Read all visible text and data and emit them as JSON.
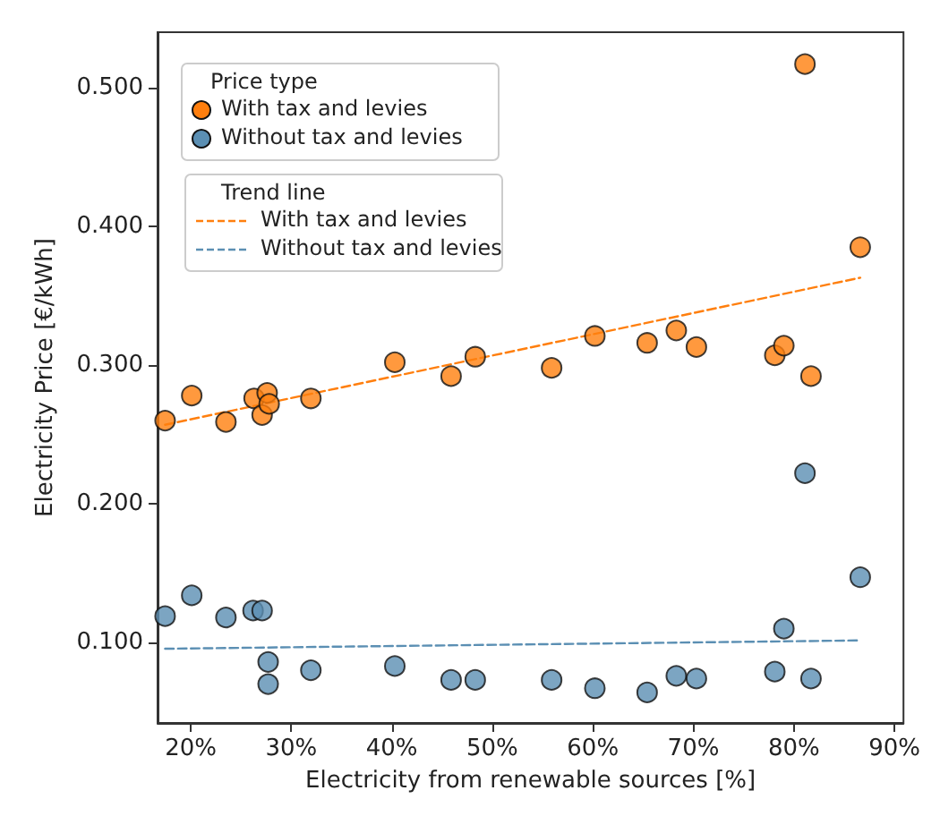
{
  "chart_data": {
    "type": "scatter",
    "xlabel": "Electricity from renewable sources [%]",
    "ylabel": "Electricity Price [€/kWh]",
    "legend_title": "Price type",
    "annotations": [
      "Trend line"
    ],
    "xlim": [
      16.7,
      90.9
    ],
    "xticks": [
      {
        "value": 20,
        "label": "20%"
      },
      {
        "value": 30,
        "label": "30%"
      },
      {
        "value": 40,
        "label": "40%"
      },
      {
        "value": 50,
        "label": "50%"
      },
      {
        "value": 60,
        "label": "60%"
      },
      {
        "value": 70,
        "label": "70%"
      },
      {
        "value": 80,
        "label": "80%"
      },
      {
        "value": 90,
        "label": "90%"
      }
    ],
    "ylim": [
      0.042,
      0.54
    ],
    "yticks": [
      {
        "value": 0.1,
        "label": "0.100"
      },
      {
        "value": 0.2,
        "label": "0.200"
      },
      {
        "value": 0.3,
        "label": "0.300"
      },
      {
        "value": 0.4,
        "label": "0.400"
      },
      {
        "value": 0.5,
        "label": "0.500"
      }
    ],
    "grid": false,
    "legend": "top left",
    "marker": "circle",
    "x": [
      17.45,
      20.1,
      23.5,
      26.3,
      27.6,
      27.1,
      27.8,
      31.95,
      40.3,
      45.9,
      48.3,
      55.9,
      60.2,
      65.4,
      68.3,
      70.3,
      78.1,
      79.0,
      81.1,
      81.7,
      86.6
    ],
    "series": [
      {
        "name": "With tax and levies",
        "color": "#ff7f0e",
        "values": [
          0.26,
          0.278,
          0.259,
          0.276,
          0.28,
          0.264,
          0.272,
          0.276,
          0.302,
          0.292,
          0.306,
          0.298,
          0.321,
          0.316,
          0.325,
          0.313,
          0.307,
          0.314,
          0.517,
          0.292,
          0.385
        ]
      },
      {
        "name": "Without tax and levies",
        "color": "#5b8fb3",
        "x": [
          17.45,
          20.1,
          23.5,
          26.2,
          27.1,
          27.7,
          27.7,
          31.95,
          40.3,
          45.9,
          48.3,
          55.9,
          60.2,
          65.4,
          68.3,
          70.3,
          78.1,
          79.0,
          81.1,
          81.7,
          86.6
        ],
        "values": [
          0.119,
          0.134,
          0.118,
          0.123,
          0.123,
          0.086,
          0.07,
          0.08,
          0.083,
          0.073,
          0.073,
          0.073,
          0.067,
          0.064,
          0.076,
          0.074,
          0.079,
          0.11,
          0.222,
          0.074,
          0.147
        ]
      },
      {
        "type": "line",
        "name": "With tax and levies",
        "color": "#ff7f0e",
        "line_style": "dashed",
        "marker": "none",
        "x": [
          17.45,
          86.6
        ],
        "values": [
          0.257,
          0.363
        ]
      },
      {
        "type": "line",
        "name": "Without tax and levies",
        "color": "#5b8fb3",
        "line_style": "dashed",
        "marker": "none",
        "x": [
          17.45,
          86.6
        ],
        "values": [
          0.0955,
          0.1015
        ]
      }
    ]
  }
}
